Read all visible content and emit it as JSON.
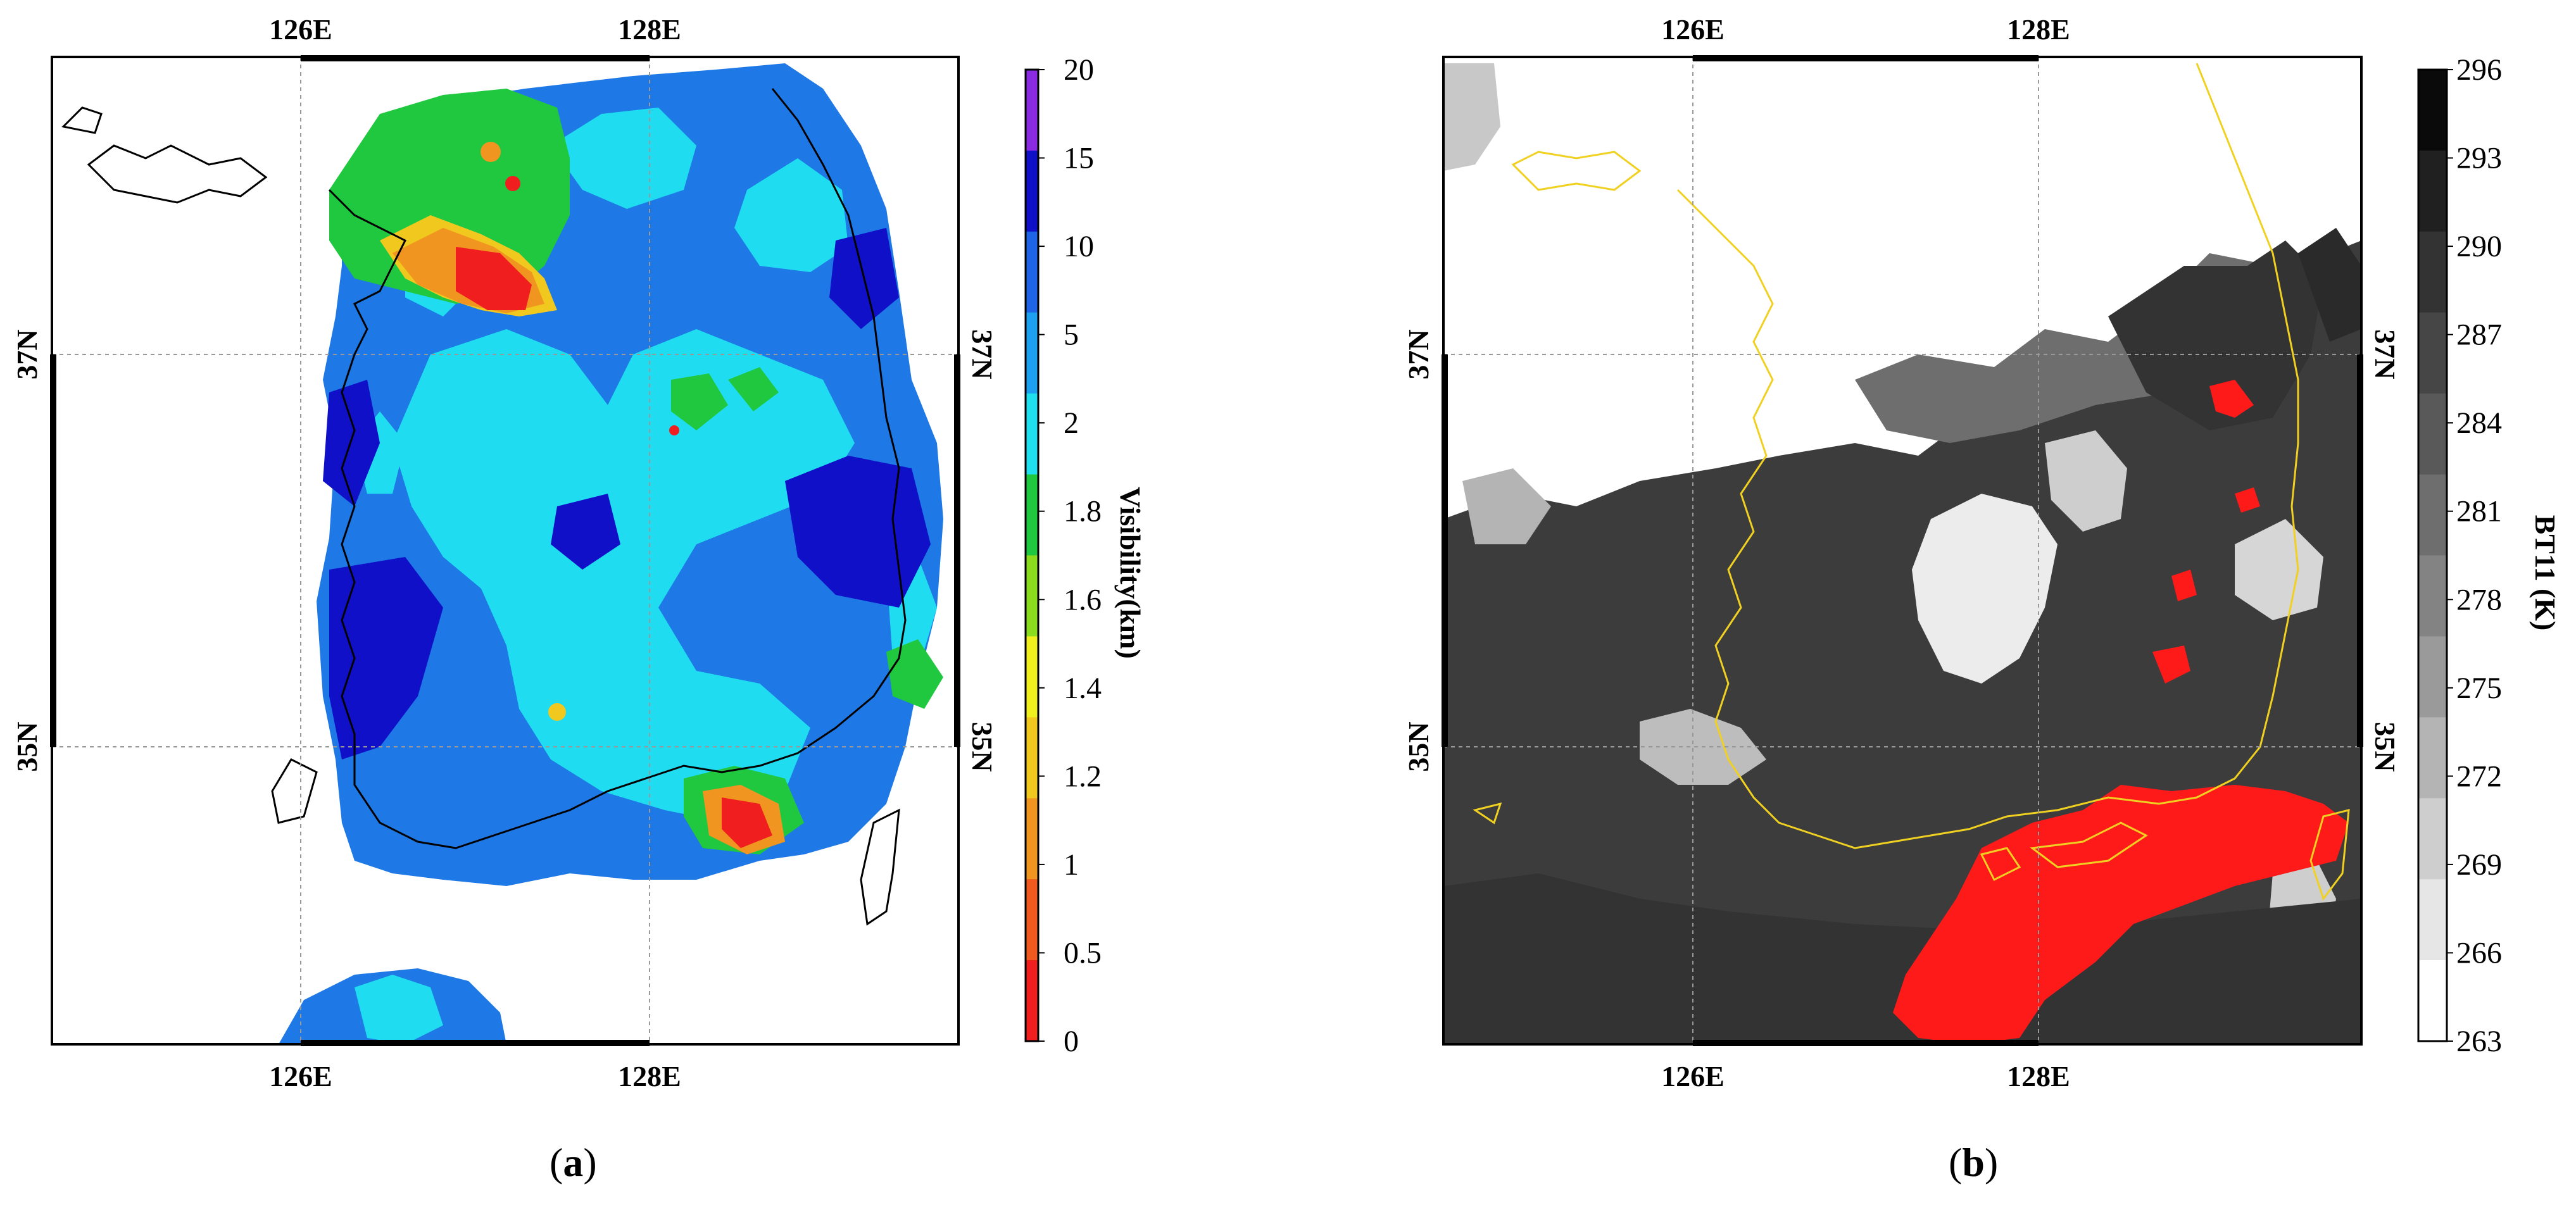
{
  "panels": [
    {
      "id": "a",
      "caption_open": "(",
      "caption_letter": "a",
      "caption_close": ")",
      "lon_ticks": [
        "126E",
        "128E"
      ],
      "lat_ticks": [
        "37N",
        "35N"
      ],
      "colorbar": {
        "title": "Visibility(km)",
        "ticks": [
          "20",
          "15",
          "10",
          "5",
          "2",
          "1.8",
          "1.6",
          "1.4",
          "1.2",
          "1",
          "0.5",
          "0"
        ],
        "colors": [
          "#8a2be2",
          "#1010c8",
          "#1e64e6",
          "#1ea0f0",
          "#20e0f0",
          "#20c840",
          "#8cdc1e",
          "#f0f01e",
          "#f0c81e",
          "#f09620",
          "#f05a1e",
          "#f01e1e"
        ]
      }
    },
    {
      "id": "b",
      "caption_open": "(",
      "caption_letter": "b",
      "caption_close": ")",
      "lon_ticks": [
        "126E",
        "128E"
      ],
      "lat_ticks": [
        "37N",
        "35N"
      ],
      "colorbar": {
        "title": "BT11 (K)",
        "ticks": [
          "296",
          "293",
          "290",
          "287",
          "284",
          "281",
          "278",
          "275",
          "272",
          "269",
          "266",
          "263"
        ],
        "colors": [
          "#0a0a0a",
          "#202020",
          "#333333",
          "#464646",
          "#595959",
          "#6e6e6e",
          "#838383",
          "#9a9a9a",
          "#b4b4b4",
          "#cecece",
          "#e6e6e6",
          "#ffffff"
        ]
      }
    }
  ]
}
